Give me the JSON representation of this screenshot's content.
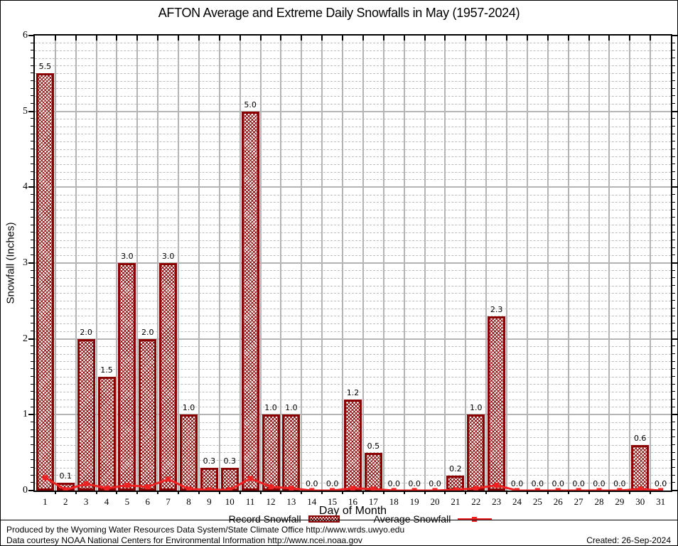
{
  "chart_data": {
    "type": "bar",
    "title": "AFTON Average and Extreme Daily Snowfalls in May (1957-2024)",
    "xlabel": "Day of Month",
    "ylabel": "Snowfall (Inches)",
    "categories": [
      1,
      2,
      3,
      4,
      5,
      6,
      7,
      8,
      9,
      10,
      11,
      12,
      13,
      14,
      15,
      16,
      17,
      18,
      19,
      20,
      21,
      22,
      23,
      24,
      25,
      26,
      27,
      28,
      29,
      30,
      31
    ],
    "series": [
      {
        "name": "Record Snowfall",
        "type": "bar",
        "color": "#8b0000",
        "values": [
          5.5,
          0.1,
          2.0,
          1.5,
          3.0,
          2.0,
          3.0,
          1.0,
          0.3,
          0.3,
          5.0,
          1.0,
          1.0,
          0.0,
          0.0,
          1.2,
          0.5,
          0.0,
          0.0,
          0.0,
          0.2,
          1.0,
          2.3,
          0.0,
          0.0,
          0.0,
          0.0,
          0.0,
          0.0,
          0.6,
          0.0
        ]
      },
      {
        "name": "Average Snowfall",
        "type": "line",
        "color": "#ee2222",
        "values": [
          0.17,
          0.01,
          0.09,
          0.03,
          0.07,
          0.05,
          0.15,
          0.02,
          0.01,
          0.01,
          0.16,
          0.05,
          0.03,
          0.0,
          0.0,
          0.03,
          0.02,
          0.0,
          0.0,
          0.0,
          0.01,
          0.03,
          0.07,
          0.0,
          0.0,
          0.0,
          0.0,
          0.0,
          0.0,
          0.02,
          0.0
        ]
      }
    ],
    "ylim": [
      0,
      6
    ],
    "y_major_step": 1,
    "y_minor_step": 0.1,
    "grid": true,
    "legend_position": "bottom",
    "bar_value_labels": true
  },
  "legend": {
    "record_label": "Record Snowfall",
    "average_label": "Average Snowfall"
  },
  "footer": {
    "line1": "Produced by the Wyoming Water Resources Data System/State Climate Office http://www.wrds.uwyo.edu",
    "line2": "Data courtesy NOAA National Centers for Environmental Information http://www.ncei.noaa.gov",
    "created": "Created: 26-Sep-2024"
  },
  "colors": {
    "bar": "#8b0000",
    "line": "#ee2222",
    "grid_major": "#b4b4b4",
    "grid_minor": "#bdbdbd",
    "axis": "#000000",
    "background": "#ffffff"
  }
}
